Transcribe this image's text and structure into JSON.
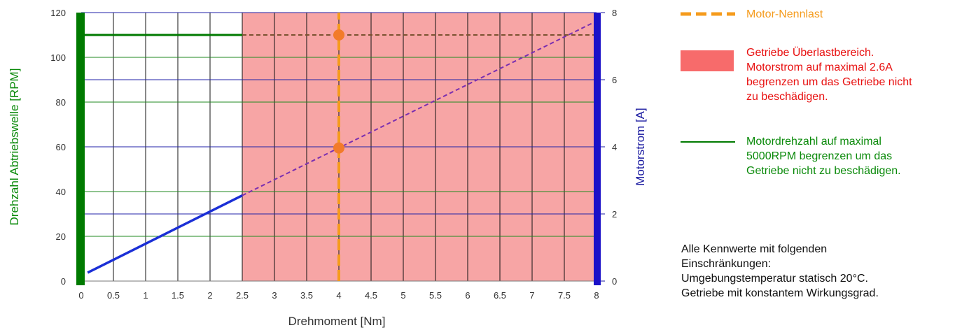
{
  "chart_data": {
    "type": "line",
    "xlabel": "Drehmoment [Nm]",
    "ylabel_left": "Drehzahl Abtriebswelle [RPM]",
    "ylabel_right": "Motorstrom [A]",
    "xlim": [
      0,
      8
    ],
    "ylim_left": [
      0,
      120
    ],
    "ylim_right": [
      0,
      8
    ],
    "x_ticks": [
      "0",
      "0.5",
      "1",
      "1.5",
      "2",
      "2.5",
      "3",
      "3.5",
      "4",
      "4.5",
      "5",
      "5.5",
      "6",
      "6.5",
      "7",
      "7.5",
      "8"
    ],
    "y_left_ticks": [
      "0",
      "20",
      "40",
      "60",
      "80",
      "100",
      "120"
    ],
    "y_right_ticks": [
      "0",
      "2",
      "4",
      "6",
      "8"
    ],
    "grid": true,
    "overload_region": {
      "x_from": 2.5,
      "x_to": 8,
      "color": "#f7a5a5"
    },
    "series": [
      {
        "axis": "left",
        "style": "solid",
        "color": "#007a00",
        "x": [
          0,
          2.5
        ],
        "y": [
          110,
          110
        ]
      },
      {
        "axis": "left",
        "style": "dashed",
        "color": "#7a5230",
        "x": [
          2.5,
          8
        ],
        "y": [
          110,
          110
        ]
      },
      {
        "axis": "right",
        "style": "solid",
        "color": "#1b2fd6",
        "x": [
          0.1,
          2.5
        ],
        "y": [
          0.25,
          2.55
        ]
      },
      {
        "axis": "right",
        "style": "dashed",
        "color": "#7a2fb0",
        "x": [
          2.5,
          7.95
        ],
        "y": [
          2.55,
          7.7
        ]
      },
      {
        "axis": "right",
        "style": "vertical-dashed",
        "color": "#f59b1c",
        "x": [
          4,
          4
        ],
        "y": [
          0,
          8
        ]
      }
    ],
    "points": [
      {
        "axis": "left",
        "x": 4,
        "y": 110,
        "color": "#f27b2a"
      },
      {
        "axis": "left",
        "x": 4,
        "y": 59.5,
        "color": "#f27b2a"
      }
    ],
    "legend": [
      {
        "kind": "dashed-line",
        "color": "#f59b1c",
        "text_color": "#f59b1c",
        "lines": [
          "Motor-Nennlast"
        ]
      },
      {
        "kind": "box",
        "color": "#f76b6b",
        "text_color": "#e81010",
        "lines": [
          "Getriebe Überlastbereich.",
          "Motorstrom auf maximal 2.6A",
          "begrenzen um das Getriebe nicht",
          "zu beschädigen."
        ]
      },
      {
        "kind": "line",
        "color": "#007a00",
        "text_color": "#0a8a0a",
        "lines": [
          "Motordrehzahl auf maximal",
          "5000RPM begrenzen um das",
          "Getriebe nicht zu beschädigen."
        ]
      }
    ],
    "note": [
      "Alle Kennwerte mit folgenden",
      "Einschränkungen:",
      "Umgebungstemperatur statisch 20°C.",
      "Getriebe mit konstantem Wirkungsgrad."
    ],
    "colors": {
      "left_axis": "#0a8a0a",
      "right_axis": "#1a1aa0",
      "left_bar": "#007a00",
      "right_bar": "#1a10c8"
    }
  }
}
